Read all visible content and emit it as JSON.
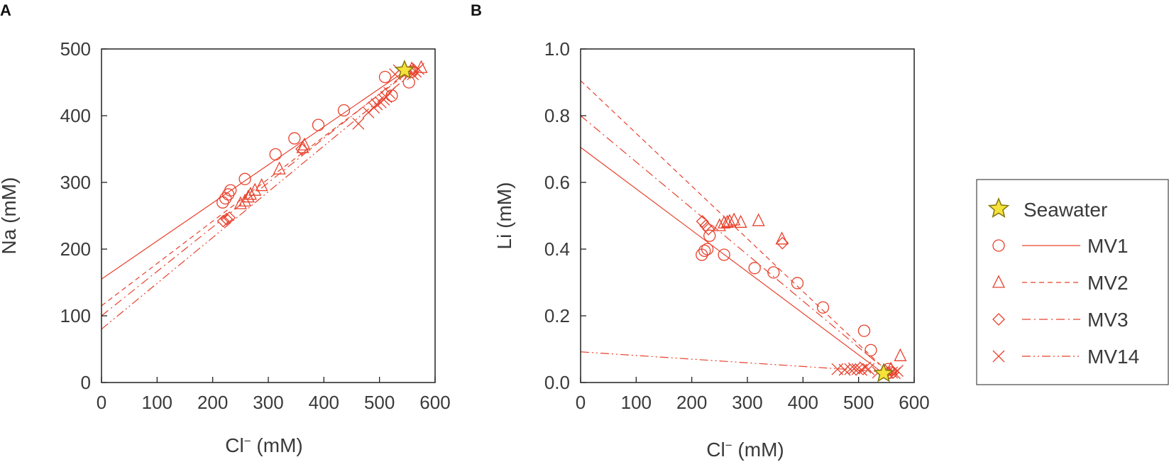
{
  "colors": {
    "series": "#e8412c",
    "axis": "#222222",
    "text": "#3a3a3a",
    "star_fill": "#f5e23a",
    "star_stroke": "#8a7a12"
  },
  "legend": {
    "seawater": "Seawater",
    "entries": [
      {
        "key": "MV1",
        "label": "MV1",
        "marker": "circle",
        "line": "solid"
      },
      {
        "key": "MV2",
        "label": "MV2",
        "marker": "triangle",
        "line": "dashed"
      },
      {
        "key": "MV3",
        "label": "MV3",
        "marker": "diamond",
        "line": "dash-dot"
      },
      {
        "key": "MV14",
        "label": "MV14",
        "marker": "x",
        "line": "dash-dot-dot"
      }
    ]
  },
  "chart_data": [
    {
      "type": "scatter",
      "panel": "A",
      "title": "",
      "xlabel_main": "Cl",
      "xlabel_sup": "−",
      "xlabel_rest": " (mM)",
      "ylabel": "Na (mM)",
      "xlim": [
        0,
        600
      ],
      "ylim": [
        0,
        500
      ],
      "xticks": [
        0,
        100,
        200,
        300,
        400,
        500,
        600
      ],
      "yticks": [
        0,
        100,
        200,
        300,
        400,
        500
      ],
      "ytick_labels": [
        "0",
        "100",
        "200",
        "300",
        "400",
        "500"
      ],
      "seawater": {
        "x": 545,
        "y": 468
      },
      "series": [
        {
          "name": "MV1",
          "marker": "circle",
          "points": [
            [
              218,
              270
            ],
            [
              223,
              276
            ],
            [
              228,
              282
            ],
            [
              232,
              288
            ],
            [
              258,
              305
            ],
            [
              313,
              342
            ],
            [
              347,
              366
            ],
            [
              390,
              386
            ],
            [
              436,
              408
            ],
            [
              510,
              458
            ],
            [
              522,
              430
            ],
            [
              553,
              450
            ],
            [
              558,
              466
            ]
          ],
          "fit": [
            [
              0,
              155
            ],
            [
              548,
              468
            ]
          ]
        },
        {
          "name": "MV2",
          "marker": "triangle",
          "points": [
            [
              250,
              268
            ],
            [
              258,
              272
            ],
            [
              264,
              278
            ],
            [
              268,
              282
            ],
            [
              276,
              288
            ],
            [
              288,
              295
            ],
            [
              320,
              320
            ],
            [
              362,
              352
            ],
            [
              365,
              356
            ],
            [
              558,
              470
            ],
            [
              575,
              472
            ]
          ],
          "fit": [
            [
              0,
              115
            ],
            [
              560,
              470
            ]
          ]
        },
        {
          "name": "MV3",
          "marker": "diamond",
          "points": [
            [
              219,
              242
            ],
            [
              225,
              245
            ],
            [
              230,
              247
            ],
            [
              360,
              350
            ],
            [
              548,
              466
            ],
            [
              562,
              468
            ]
          ],
          "fit": [
            [
              0,
              100
            ],
            [
              556,
              470
            ]
          ]
        },
        {
          "name": "MV14",
          "marker": "x",
          "points": [
            [
              462,
              388
            ],
            [
              480,
              405
            ],
            [
              490,
              412
            ],
            [
              495,
              417
            ],
            [
              502,
              420
            ],
            [
              508,
              424
            ],
            [
              512,
              428
            ],
            [
              518,
              434
            ],
            [
              528,
              462
            ],
            [
              535,
              468
            ],
            [
              560,
              462
            ],
            [
              565,
              466
            ],
            [
              570,
              470
            ]
          ],
          "fit": [
            [
              0,
              80
            ],
            [
              568,
              470
            ]
          ]
        }
      ]
    },
    {
      "type": "scatter",
      "panel": "B",
      "title": "",
      "xlabel_main": "Cl",
      "xlabel_sup": "−",
      "xlabel_rest": " (mM)",
      "ylabel": "Li (mM)",
      "xlim": [
        0,
        600
      ],
      "ylim": [
        0,
        1.0
      ],
      "xticks": [
        0,
        100,
        200,
        300,
        400,
        500,
        600
      ],
      "yticks": [
        0,
        0.2,
        0.4,
        0.6,
        0.8,
        1.0
      ],
      "ytick_labels": [
        "0.0",
        "0.2",
        "0.4",
        "0.6",
        "0.8",
        "1.0"
      ],
      "seawater": {
        "x": 545,
        "y": 0.027
      },
      "series": [
        {
          "name": "MV1",
          "marker": "circle",
          "points": [
            [
              218,
              0.383
            ],
            [
              223,
              0.395
            ],
            [
              228,
              0.4
            ],
            [
              232,
              0.44
            ],
            [
              258,
              0.383
            ],
            [
              313,
              0.343
            ],
            [
              347,
              0.33
            ],
            [
              390,
              0.298
            ],
            [
              436,
              0.225
            ],
            [
              510,
              0.155
            ],
            [
              522,
              0.097
            ],
            [
              553,
              0.04
            ],
            [
              558,
              0.03
            ]
          ],
          "fit": [
            [
              0,
              0.705
            ],
            [
              545,
              0.027
            ]
          ]
        },
        {
          "name": "MV2",
          "marker": "triangle",
          "points": [
            [
              250,
              0.47
            ],
            [
              258,
              0.478
            ],
            [
              264,
              0.48
            ],
            [
              268,
              0.483
            ],
            [
              276,
              0.487
            ],
            [
              288,
              0.48
            ],
            [
              320,
              0.485
            ],
            [
              362,
              0.43
            ],
            [
              558,
              0.04
            ],
            [
              575,
              0.08
            ]
          ],
          "fit": [
            [
              0,
              0.905
            ],
            [
              560,
              0.02
            ]
          ]
        },
        {
          "name": "MV3",
          "marker": "diamond",
          "points": [
            [
              219,
              0.483
            ],
            [
              225,
              0.47
            ],
            [
              230,
              0.46
            ],
            [
              363,
              0.418
            ],
            [
              548,
              0.035
            ],
            [
              562,
              0.03
            ]
          ],
          "fit": [
            [
              0,
              0.8
            ],
            [
              560,
              0.022
            ]
          ]
        },
        {
          "name": "MV14",
          "marker": "x",
          "points": [
            [
              462,
              0.04
            ],
            [
              475,
              0.038
            ],
            [
              485,
              0.04
            ],
            [
              492,
              0.042
            ],
            [
              498,
              0.04
            ],
            [
              505,
              0.038
            ],
            [
              512,
              0.045
            ],
            [
              518,
              0.04
            ],
            [
              535,
              0.03
            ],
            [
              560,
              0.03
            ],
            [
              565,
              0.028
            ],
            [
              570,
              0.035
            ]
          ],
          "fit": [
            [
              0,
              0.092
            ],
            [
              565,
              0.03
            ]
          ]
        }
      ]
    }
  ]
}
